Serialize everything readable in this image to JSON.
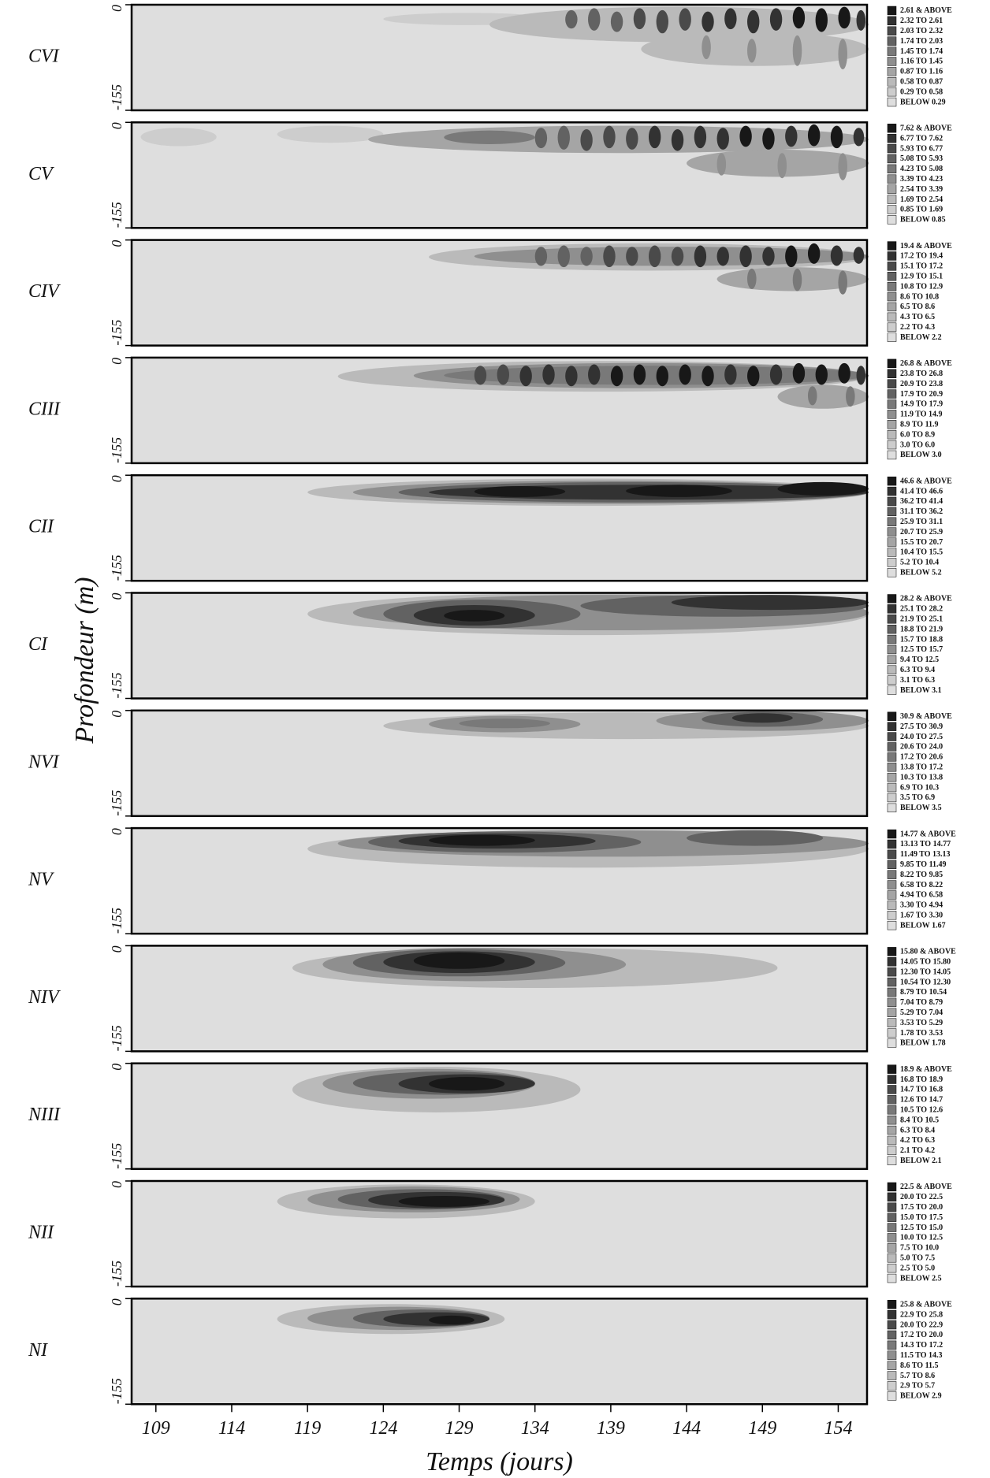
{
  "ylabel": "Profondeur (m)",
  "colors": [
    "#dedede",
    "#cdcdcd",
    "#bababa",
    "#a5a5a5",
    "#8f8f8f",
    "#797979",
    "#626262",
    "#4a4a4a",
    "#323232",
    "#181818"
  ],
  "chart_data": [
    {
      "type": "contour",
      "title": "CVI",
      "xlim": [
        107.4,
        155.9
      ],
      "ylim": [
        -155,
        0
      ],
      "yticks": [
        -155,
        0
      ],
      "legend": [
        "2.61 & ABOVE",
        "2.32 TO 2.61",
        "2.03 TO 2.32",
        "1.74 TO 2.03",
        "1.45 TO 1.74",
        "1.16 TO 1.45",
        "0.87 TO 1.16",
        "0.58 TO 0.87",
        "0.29 TO 0.58",
        "BELOW 0.29"
      ],
      "blobs": [
        [
          124,
          135,
          -12,
          -30,
          1
        ],
        [
          131,
          156,
          -3,
          -55,
          2
        ],
        [
          141,
          156,
          -40,
          -90,
          2
        ],
        [
          145,
          145.6,
          -45,
          -80,
          4
        ],
        [
          148,
          148.6,
          -50,
          -85,
          4
        ],
        [
          151,
          151.6,
          -45,
          -90,
          4
        ],
        [
          154,
          154.6,
          -50,
          -95,
          4
        ],
        [
          136,
          136.8,
          -8,
          -35,
          6
        ],
        [
          137.5,
          138.3,
          -5,
          -38,
          6
        ],
        [
          139,
          139.8,
          -10,
          -40,
          6
        ],
        [
          140.5,
          141.3,
          -5,
          -36,
          7
        ],
        [
          142,
          142.8,
          -8,
          -42,
          7
        ],
        [
          143.5,
          144.3,
          -5,
          -38,
          7
        ],
        [
          145,
          145.8,
          -10,
          -40,
          8
        ],
        [
          146.5,
          147.3,
          -5,
          -36,
          8
        ],
        [
          148,
          148.8,
          -8,
          -42,
          8
        ],
        [
          149.5,
          150.3,
          -5,
          -38,
          8
        ],
        [
          151,
          151.8,
          -3,
          -35,
          9
        ],
        [
          152.5,
          153.3,
          -5,
          -40,
          9
        ],
        [
          154,
          154.8,
          -3,
          -35,
          9
        ],
        [
          155.2,
          155.8,
          -8,
          -38,
          8
        ]
      ]
    },
    {
      "type": "contour",
      "title": "CV",
      "xlim": [
        107.4,
        155.9
      ],
      "ylim": [
        -155,
        0
      ],
      "yticks": [
        -155,
        0
      ],
      "legend": [
        "7.62 & ABOVE",
        "6.77 TO 7.62",
        "5.93 TO 6.77",
        "5.08 TO 5.93",
        "4.23 TO 5.08",
        "3.39 TO 4.23",
        "2.54 TO 3.39",
        "1.69 TO 2.54",
        "0.85 TO 1.69",
        "BELOW 0.85"
      ],
      "blobs": [
        [
          108,
          113,
          -8,
          -35,
          1
        ],
        [
          117,
          124,
          -5,
          -30,
          1
        ],
        [
          123,
          156,
          -5,
          -45,
          3
        ],
        [
          128,
          134,
          -12,
          -32,
          5
        ],
        [
          144,
          156,
          -40,
          -80,
          3
        ],
        [
          146,
          146.6,
          -45,
          -78,
          4
        ],
        [
          150,
          150.6,
          -45,
          -82,
          4
        ],
        [
          154,
          154.6,
          -45,
          -85,
          4
        ],
        [
          134,
          134.8,
          -8,
          -38,
          6
        ],
        [
          135.5,
          136.3,
          -5,
          -40,
          6
        ],
        [
          137,
          137.8,
          -10,
          -42,
          7
        ],
        [
          138.5,
          139.3,
          -5,
          -38,
          7
        ],
        [
          140,
          140.8,
          -8,
          -40,
          7
        ],
        [
          141.5,
          142.3,
          -5,
          -38,
          8
        ],
        [
          143,
          143.8,
          -10,
          -42,
          8
        ],
        [
          144.5,
          145.3,
          -5,
          -38,
          8
        ],
        [
          146,
          146.8,
          -8,
          -40,
          8
        ],
        [
          147.5,
          148.3,
          -5,
          -36,
          9
        ],
        [
          149,
          149.8,
          -8,
          -40,
          9
        ],
        [
          150.5,
          151.3,
          -5,
          -36,
          8
        ],
        [
          152,
          152.8,
          -3,
          -35,
          9
        ],
        [
          153.5,
          154.3,
          -5,
          -38,
          9
        ],
        [
          155,
          155.7,
          -8,
          -35,
          8
        ]
      ]
    },
    {
      "type": "contour",
      "title": "CIV",
      "xlim": [
        107.4,
        155.9
      ],
      "ylim": [
        -155,
        0
      ],
      "yticks": [
        -155,
        0
      ],
      "legend": [
        "19.4 & ABOVE",
        "17.2 TO 19.4",
        "15.1 TO 17.2",
        "12.9 TO 15.1",
        "10.8 TO 12.9",
        "8.6 TO 10.8",
        "6.5 TO 8.6",
        "4.3 TO 6.5",
        "2.2 TO 4.3",
        "BELOW 2.2"
      ],
      "blobs": [
        [
          127,
          156,
          -5,
          -45,
          2
        ],
        [
          130,
          156,
          -10,
          -38,
          4
        ],
        [
          146,
          156,
          -40,
          -75,
          3
        ],
        [
          148,
          148.6,
          -42,
          -72,
          5
        ],
        [
          151,
          151.6,
          -42,
          -75,
          5
        ],
        [
          154,
          154.6,
          -45,
          -80,
          5
        ],
        [
          134,
          134.8,
          -10,
          -38,
          6
        ],
        [
          135.5,
          136.3,
          -8,
          -40,
          6
        ],
        [
          137,
          137.8,
          -10,
          -38,
          6
        ],
        [
          138.5,
          139.3,
          -8,
          -40,
          7
        ],
        [
          140,
          140.8,
          -10,
          -38,
          7
        ],
        [
          141.5,
          142.3,
          -8,
          -40,
          7
        ],
        [
          143,
          143.8,
          -10,
          -38,
          7
        ],
        [
          144.5,
          145.3,
          -8,
          -40,
          8
        ],
        [
          146,
          146.8,
          -10,
          -38,
          8
        ],
        [
          147.5,
          148.3,
          -8,
          -40,
          8
        ],
        [
          149,
          149.8,
          -10,
          -38,
          8
        ],
        [
          150.5,
          151.3,
          -8,
          -40,
          9
        ],
        [
          152,
          152.8,
          -5,
          -35,
          9
        ],
        [
          153.5,
          154.3,
          -8,
          -38,
          8
        ],
        [
          155,
          155.7,
          -10,
          -35,
          8
        ]
      ]
    },
    {
      "type": "contour",
      "title": "CIII",
      "xlim": [
        107.4,
        155.9
      ],
      "ylim": [
        -155,
        0
      ],
      "yticks": [
        -155,
        0
      ],
      "legend": [
        "26.8 & ABOVE",
        "23.8 TO 26.8",
        "20.9 TO 23.8",
        "17.9 TO 20.9",
        "14.9 TO 17.9",
        "11.9 TO 14.9",
        "8.9 TO 11.9",
        "6.0 TO 8.9",
        "3.0 TO 6.0",
        "BELOW 3.0"
      ],
      "blobs": [
        [
          121,
          156,
          -5,
          -50,
          2
        ],
        [
          126,
          156,
          -8,
          -45,
          4
        ],
        [
          150,
          156,
          -40,
          -75,
          3
        ],
        [
          152,
          152.6,
          -42,
          -70,
          5
        ],
        [
          154.5,
          155.1,
          -42,
          -72,
          5
        ],
        [
          128,
          156,
          -12,
          -40,
          5
        ],
        [
          130,
          130.8,
          -12,
          -40,
          7
        ],
        [
          131.5,
          132.3,
          -10,
          -40,
          7
        ],
        [
          133,
          133.8,
          -12,
          -42,
          8
        ],
        [
          134.5,
          135.3,
          -10,
          -40,
          8
        ],
        [
          136,
          136.8,
          -12,
          -42,
          8
        ],
        [
          137.5,
          138.3,
          -10,
          -40,
          8
        ],
        [
          139,
          139.8,
          -12,
          -42,
          9
        ],
        [
          140.5,
          141.3,
          -10,
          -40,
          9
        ],
        [
          142,
          142.8,
          -12,
          -42,
          9
        ],
        [
          143.5,
          144.3,
          -10,
          -40,
          9
        ],
        [
          145,
          145.8,
          -12,
          -42,
          9
        ],
        [
          146.5,
          147.3,
          -10,
          -40,
          8
        ],
        [
          148,
          148.8,
          -12,
          -42,
          9
        ],
        [
          149.5,
          150.3,
          -10,
          -40,
          8
        ],
        [
          151,
          151.8,
          -8,
          -38,
          9
        ],
        [
          152.5,
          153.3,
          -10,
          -40,
          9
        ],
        [
          154,
          154.8,
          -8,
          -38,
          9
        ],
        [
          155.2,
          155.8,
          -12,
          -40,
          8
        ]
      ]
    },
    {
      "type": "contour",
      "title": "CII",
      "xlim": [
        107.4,
        155.9
      ],
      "ylim": [
        -155,
        0
      ],
      "yticks": [
        -155,
        0
      ],
      "legend": [
        "46.6 & ABOVE",
        "41.4 TO 46.6",
        "36.2 TO 41.4",
        "31.1 TO 36.2",
        "25.9 TO 31.1",
        "20.7 TO 25.9",
        "15.5 TO 20.7",
        "10.4 TO 15.5",
        "5.2 TO 10.4",
        "BELOW 5.2"
      ],
      "blobs": [
        [
          119,
          156,
          -5,
          -45,
          2
        ],
        [
          122,
          156,
          -8,
          -42,
          4
        ],
        [
          125,
          156,
          -10,
          -40,
          6
        ],
        [
          127,
          156,
          -14,
          -36,
          8
        ],
        [
          130,
          136,
          -16,
          -32,
          9
        ],
        [
          140,
          147,
          -14,
          -32,
          9
        ],
        [
          150,
          156,
          -10,
          -30,
          9
        ]
      ]
    },
    {
      "type": "contour",
      "title": "CI",
      "xlim": [
        107.4,
        155.9
      ],
      "ylim": [
        -155,
        0
      ],
      "yticks": [
        -155,
        0
      ],
      "legend": [
        "28.2 & ABOVE",
        "25.1 TO 28.2",
        "21.9 TO 25.1",
        "18.8 TO 21.9",
        "15.7 TO 18.8",
        "12.5 TO 15.7",
        "9.4 TO 12.5",
        "6.3 TO 9.4",
        "3.1 TO 6.3",
        "BELOW 3.1"
      ],
      "blobs": [
        [
          119,
          156,
          0,
          -62,
          2
        ],
        [
          122,
          156,
          -3,
          -55,
          4
        ],
        [
          124,
          137,
          -10,
          -52,
          6
        ],
        [
          137,
          156,
          -3,
          -35,
          6
        ],
        [
          126,
          134,
          -18,
          -48,
          8
        ],
        [
          143,
          156,
          -3,
          -25,
          8
        ],
        [
          128,
          132,
          -25,
          -42,
          9
        ]
      ]
    },
    {
      "type": "contour",
      "title": "NVI",
      "xlim": [
        107.4,
        155.9
      ],
      "ylim": [
        -155,
        0
      ],
      "yticks": [
        -155,
        0
      ],
      "legend": [
        "30.9 & ABOVE",
        "27.5 TO 30.9",
        "24.0 TO 27.5",
        "20.6 TO 24.0",
        "17.2 TO 20.6",
        "13.8 TO 17.2",
        "10.3 TO 13.8",
        "6.9 TO 10.3",
        "3.5 TO 6.9",
        "BELOW 3.5"
      ],
      "blobs": [
        [
          124,
          156,
          -3,
          -42,
          2
        ],
        [
          127,
          137,
          -8,
          -32,
          4
        ],
        [
          142,
          156,
          0,
          -30,
          4
        ],
        [
          129,
          135,
          -12,
          -26,
          5
        ],
        [
          145,
          153,
          -2,
          -24,
          6
        ],
        [
          147,
          151,
          -4,
          -18,
          8
        ]
      ]
    },
    {
      "type": "contour",
      "title": "NV",
      "xlim": [
        107.4,
        155.9
      ],
      "ylim": [
        -155,
        0
      ],
      "yticks": [
        -155,
        0
      ],
      "legend": [
        "14.77 & ABOVE",
        "13.13 TO 14.77",
        "11.49 TO 13.13",
        "9.85 TO 11.49",
        "8.22 TO 9.85",
        "6.58 TO 8.22",
        "4.94 TO 6.58",
        "3.30 TO 4.94",
        "1.67 TO 3.30",
        "BELOW 1.67"
      ],
      "blobs": [
        [
          119,
          156,
          -3,
          -58,
          2
        ],
        [
          121,
          156,
          -3,
          -42,
          4
        ],
        [
          123,
          141,
          -5,
          -36,
          6
        ],
        [
          144,
          153,
          -3,
          -26,
          6
        ],
        [
          125,
          138,
          -8,
          -30,
          8
        ],
        [
          127,
          134,
          -10,
          -26,
          9
        ]
      ]
    },
    {
      "type": "contour",
      "title": "NIV",
      "xlim": [
        107.4,
        155.9
      ],
      "ylim": [
        -155,
        0
      ],
      "yticks": [
        -155,
        0
      ],
      "legend": [
        "15.80 & ABOVE",
        "14.05 TO 15.80",
        "12.30 TO 14.05",
        "10.54 TO 12.30",
        "8.79 TO 10.54",
        "7.04 TO 8.79",
        "5.29 TO 7.04",
        "3.53 TO 5.29",
        "1.78 TO 3.53",
        "BELOW 1.78"
      ],
      "blobs": [
        [
          118,
          150,
          -3,
          -62,
          2
        ],
        [
          120,
          140,
          -3,
          -52,
          4
        ],
        [
          122,
          136,
          -5,
          -45,
          6
        ],
        [
          124,
          134,
          -8,
          -40,
          8
        ],
        [
          126,
          132,
          -10,
          -34,
          9
        ]
      ]
    },
    {
      "type": "contour",
      "title": "NIII",
      "xlim": [
        107.4,
        155.9
      ],
      "ylim": [
        -155,
        0
      ],
      "yticks": [
        -155,
        0
      ],
      "legend": [
        "18.9 & ABOVE",
        "16.8 TO 18.9",
        "14.7 TO 16.8",
        "12.6 TO 14.7",
        "10.5 TO 12.6",
        "8.4 TO 10.5",
        "6.3 TO 8.4",
        "4.2 TO 6.3",
        "2.1 TO 4.2",
        "BELOW 2.1"
      ],
      "blobs": [
        [
          118,
          137,
          -5,
          -72,
          2
        ],
        [
          120,
          134,
          -8,
          -52,
          4
        ],
        [
          122,
          134,
          -12,
          -46,
          6
        ],
        [
          125,
          134,
          -16,
          -44,
          8
        ],
        [
          127,
          132,
          -20,
          -40,
          9
        ]
      ]
    },
    {
      "type": "contour",
      "title": "NII",
      "xlim": [
        107.4,
        155.9
      ],
      "ylim": [
        -155,
        0
      ],
      "yticks": [
        -155,
        0
      ],
      "legend": [
        "22.5 & ABOVE",
        "20.0 TO 22.5",
        "17.5 TO 20.0",
        "15.0 TO 17.5",
        "12.5 TO 15.0",
        "10.0 TO 12.5",
        "7.5 TO 10.0",
        "5.0 TO 7.5",
        "2.5 TO 5.0",
        "BELOW 2.5"
      ],
      "blobs": [
        [
          117,
          134,
          -5,
          -55,
          2
        ],
        [
          119,
          133,
          -8,
          -46,
          4
        ],
        [
          121,
          132,
          -12,
          -42,
          6
        ],
        [
          123,
          132,
          -16,
          -40,
          8
        ],
        [
          125,
          131,
          -22,
          -38,
          9
        ]
      ]
    },
    {
      "type": "contour",
      "title": "NI",
      "xlabel": "Temps (jours)",
      "xlim": [
        107.4,
        155.9
      ],
      "ylim": [
        -155,
        0
      ],
      "yticks": [
        -155,
        0
      ],
      "xticks": [
        109,
        114,
        119,
        124,
        129,
        134,
        139,
        144,
        149,
        154
      ],
      "legend": [
        "25.8 & ABOVE",
        "22.9 TO 25.8",
        "20.0 TO 22.9",
        "17.2 TO 20.0",
        "14.3 TO 17.2",
        "11.5 TO 14.3",
        "8.6 TO 11.5",
        "5.7 TO 8.6",
        "2.9 TO 5.7",
        "BELOW 2.9"
      ],
      "blobs": [
        [
          117,
          132,
          -8,
          -52,
          2
        ],
        [
          119,
          131,
          -12,
          -46,
          4
        ],
        [
          122,
          131,
          -16,
          -42,
          6
        ],
        [
          124,
          131,
          -20,
          -40,
          8
        ],
        [
          127,
          130,
          -25,
          -38,
          9
        ]
      ]
    }
  ]
}
